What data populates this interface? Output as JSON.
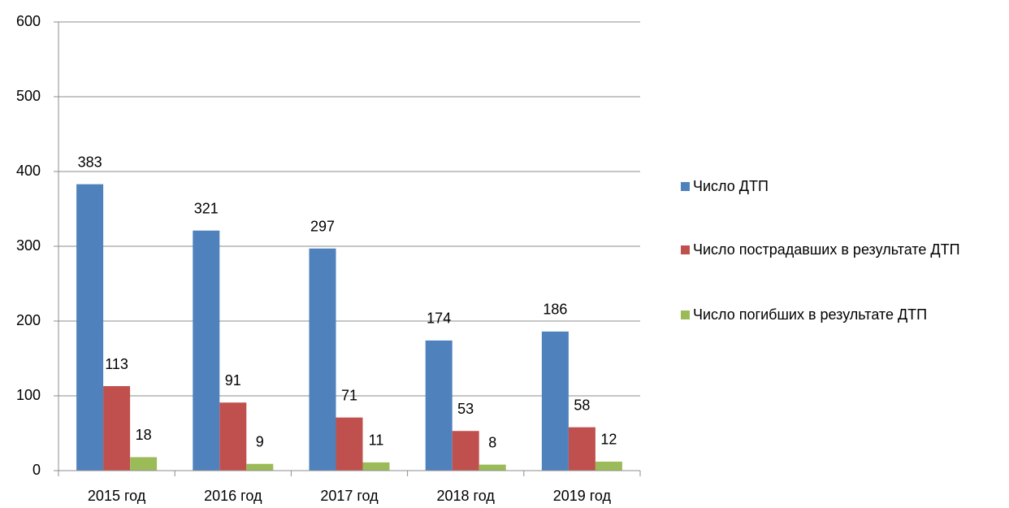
{
  "chart_data": {
    "type": "bar",
    "categories": [
      "2015 год",
      "2016 год",
      "2017 год",
      "2018 год",
      "2019 год"
    ],
    "series": [
      {
        "name": "Число ДТП",
        "color": "#4f81bd",
        "values": [
          383,
          321,
          297,
          174,
          186
        ]
      },
      {
        "name": "Число пострадавших в результате ДТП",
        "color": "#c0504d",
        "values": [
          113,
          91,
          71,
          53,
          58
        ]
      },
      {
        "name": "Число погибших в результате ДТП",
        "color": "#9bbb59",
        "values": [
          18,
          9,
          11,
          8,
          12
        ]
      }
    ],
    "ylim": [
      0,
      600
    ],
    "yticks": [
      0,
      100,
      200,
      300,
      400,
      500,
      600
    ],
    "grid": true,
    "legend": "right"
  }
}
